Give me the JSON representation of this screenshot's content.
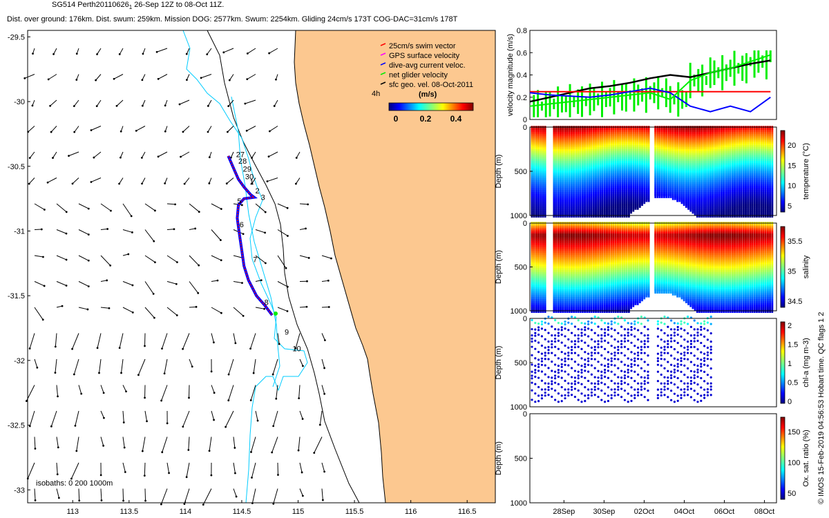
{
  "header": {
    "line1": "SG514 Perth20110626",
    "line1_sub": "1",
    "line1_rest": "26-Sep 12Z to 08-Oct 11Z.",
    "line2": "Dist. over ground: 176km. Dist. swum: 259km. Mission DOG: 2577km. Swum: 2254km. Gliding 24cm/s 173T COG-DAC=31cm/s 178T"
  },
  "colors": {
    "land": "#fcc890",
    "isobath": "#00ccff",
    "swim": "#ff0000",
    "gps": "#ff00ff",
    "dac": "#0000ff",
    "net": "#00ee00",
    "geo": "#000000"
  },
  "map": {
    "legend": [
      {
        "label": "25cm/s swim vector",
        "color": "#ff0000"
      },
      {
        "label": "GPS surface velocity",
        "color": "#ff00ff"
      },
      {
        "label": "dive-avg current veloc.",
        "color": "#0000ff"
      },
      {
        "label": "net glider velocity",
        "color": "#00ee00"
      },
      {
        "label": "sfc geo. vel. 08-Oct-2011",
        "color": "#000000"
      }
    ],
    "colorbar_title": "(m/s)",
    "colorbar_ticks": [
      "0",
      "0.2",
      "0.4"
    ],
    "label_4h": "4h",
    "isobaths_label": "isobaths: 0   200  1000m",
    "xticks": [
      "113",
      "113.5",
      "114",
      "114.5",
      "115",
      "115.5",
      "116",
      "116.5"
    ],
    "yticks": [
      "-29.5",
      "-30",
      "-30.5",
      "-31",
      "-31.5",
      "-32",
      "-32.5",
      "-33"
    ],
    "day_labels": [
      "27",
      "28",
      "29",
      "30",
      "1",
      "2",
      "3",
      "5",
      "6",
      "7",
      "8",
      "9",
      "10"
    ]
  },
  "chart_data": [
    {
      "type": "map",
      "xlim": [
        112.6,
        116.75
      ],
      "ylim": [
        -33.1,
        -29.45
      ],
      "glider_track": [
        [
          114.38,
          -30.42
        ],
        [
          114.43,
          -30.52
        ],
        [
          114.47,
          -30.6
        ],
        [
          114.52,
          -30.66
        ],
        [
          114.58,
          -30.72
        ],
        [
          114.61,
          -30.74
        ],
        [
          114.52,
          -30.75
        ],
        [
          114.47,
          -30.8
        ],
        [
          114.46,
          -30.9
        ],
        [
          114.48,
          -31.03
        ],
        [
          114.5,
          -31.15
        ],
        [
          114.52,
          -31.27
        ],
        [
          114.56,
          -31.38
        ],
        [
          114.63,
          -31.5
        ],
        [
          114.7,
          -31.57
        ],
        [
          114.77,
          -31.65
        ]
      ],
      "track_day_markers": [
        {
          "label": "27",
          "lon": 114.45,
          "lat": -30.43
        },
        {
          "label": "28",
          "lon": 114.47,
          "lon_note": "",
          "lat": -30.48
        },
        {
          "label": "29",
          "lon": 114.51,
          "lat": -30.54
        },
        {
          "label": "30",
          "lon": 114.53,
          "lat": -30.6
        },
        {
          "label": "1",
          "lon": 114.57,
          "lat": -30.64
        },
        {
          "label": "2",
          "lon": 114.62,
          "lat": -30.71
        },
        {
          "label": "3",
          "lon": 114.67,
          "lat": -30.76
        },
        {
          "label": "5",
          "lon": 114.46,
          "lat": -30.79
        },
        {
          "label": "6",
          "lon": 114.48,
          "lat": -30.97
        },
        {
          "label": "7",
          "lon": 114.6,
          "lat": -31.24
        },
        {
          "label": "8",
          "lon": 114.7,
          "lat": -31.57
        },
        {
          "label": "9",
          "lon": 114.88,
          "lat": -31.8
        },
        {
          "label": "10",
          "lon": 114.95,
          "lat": -31.93
        }
      ],
      "xlabel": "",
      "ylabel": ""
    },
    {
      "type": "line",
      "ylabel": "velocity magnitude (m/s)",
      "ylim": [
        0,
        0.8
      ],
      "yticks": [
        "0",
        "0.2",
        "0.4",
        "0.6",
        "0.8"
      ],
      "series": [
        {
          "name": "",
          "color": "#000000",
          "t": [
            0,
            1,
            2,
            3,
            4,
            5,
            6,
            7,
            8,
            9,
            10,
            11,
            12
          ],
          "values": [
            0.16,
            0.2,
            0.24,
            0.28,
            0.3,
            0.33,
            0.37,
            0.4,
            0.38,
            0.42,
            0.46,
            0.5,
            0.53
          ]
        },
        {
          "name": "",
          "color": "#ff0000",
          "t": [
            0,
            12
          ],
          "values": [
            0.25,
            0.25
          ]
        },
        {
          "name": "",
          "color": "#0000ff",
          "t": [
            0,
            1,
            2,
            3,
            4,
            5,
            6,
            7,
            8,
            9,
            10,
            11,
            12
          ],
          "values": [
            0.24,
            0.22,
            0.21,
            0.2,
            0.22,
            0.25,
            0.28,
            0.24,
            0.12,
            0.07,
            0.12,
            0.07,
            0.2
          ]
        },
        {
          "name": "",
          "color": "#00ee00",
          "t": [
            0,
            1,
            2,
            3,
            4,
            5,
            6,
            7,
            8,
            9,
            10,
            11,
            12
          ],
          "values": [
            0.12,
            0.14,
            0.16,
            0.18,
            0.2,
            0.22,
            0.24,
            0.18,
            0.35,
            0.42,
            0.46,
            0.52,
            0.58
          ]
        }
      ]
    },
    {
      "type": "heatmap",
      "ylabel": "Depth (m)",
      "cbar_label": "temperature (°C)",
      "ylim": [
        1000,
        0
      ],
      "yticks": [
        "0",
        "500",
        "1000"
      ],
      "cbar_ticks": [
        "5",
        "10",
        "15",
        "20"
      ],
      "crange": [
        3,
        22
      ]
    },
    {
      "type": "heatmap",
      "ylabel": "Depth (m)",
      "cbar_label": "salinity",
      "ylim": [
        1000,
        0
      ],
      "yticks": [
        "0",
        "500",
        "1000"
      ],
      "cbar_ticks": [
        "34.5",
        "35",
        "35.5"
      ],
      "crange": [
        34.3,
        35.9
      ]
    },
    {
      "type": "scatter",
      "ylabel": "Depth (m)",
      "cbar_label": "chl-a (mg m-3)",
      "ylim": [
        1000,
        0
      ],
      "yticks": [
        "0",
        "500",
        "1000"
      ],
      "cbar_ticks": [
        "0",
        "0.5",
        "1",
        "1.5",
        "2"
      ]
    },
    {
      "type": "heatmap",
      "ylabel": "Depth (m)",
      "cbar_label": "Ox. sat. ratio (%)",
      "ylim": [
        1000,
        0
      ],
      "yticks": [
        "0",
        "500",
        "1000"
      ],
      "cbar_ticks": [
        "50",
        "100",
        "150"
      ],
      "xticks": [
        "28Sep",
        "30Sep",
        "02Oct",
        "04Oct",
        "06Oct",
        "08Oct"
      ]
    }
  ],
  "side_note": "© IMOS 15-Feb-2019 04:56:53 Hobart time. QC flags 1  2"
}
